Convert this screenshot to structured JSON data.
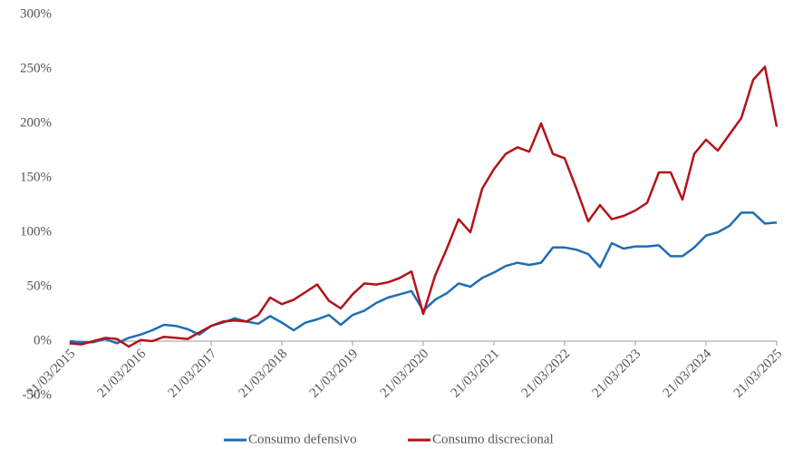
{
  "chart_data": {
    "type": "line",
    "categories": [
      "21/03/2015",
      null,
      null,
      null,
      null,
      null,
      "21/03/2016",
      null,
      null,
      null,
      null,
      null,
      "21/03/2017",
      null,
      null,
      null,
      null,
      null,
      "21/03/2018",
      null,
      null,
      null,
      null,
      null,
      "21/03/2019",
      null,
      null,
      null,
      null,
      null,
      "21/03/2020",
      null,
      null,
      null,
      null,
      null,
      "21/03/2021",
      null,
      null,
      null,
      null,
      null,
      "21/03/2022",
      null,
      null,
      null,
      null,
      null,
      "21/03/2023",
      null,
      null,
      null,
      null,
      null,
      "21/03/2024",
      null,
      null,
      null,
      null,
      null,
      "21/03/2025"
    ],
    "series": [
      {
        "name": "Consumo defensivo",
        "color": "#1f6db5",
        "values": [
          0,
          -1,
          -1,
          2,
          -2,
          3,
          6,
          10,
          15,
          14,
          11,
          6,
          14,
          17,
          21,
          18,
          16,
          23,
          17,
          10,
          17,
          20,
          24,
          15,
          24,
          28,
          35,
          40,
          43,
          46,
          28,
          38,
          44,
          53,
          50,
          58,
          63,
          69,
          72,
          70,
          72,
          86,
          86,
          84,
          80,
          68,
          90,
          85,
          87,
          87,
          88,
          78,
          78,
          86,
          97,
          100,
          106,
          118,
          118,
          108,
          109
        ]
      },
      {
        "name": "Consumo discrecional",
        "color": "#b3121a",
        "values": [
          -2,
          -3,
          0,
          3,
          2,
          -5,
          1,
          0,
          4,
          3,
          2,
          8,
          14,
          18,
          19,
          18,
          24,
          40,
          34,
          38,
          45,
          52,
          37,
          30,
          43,
          53,
          52,
          54,
          58,
          64,
          25,
          60,
          85,
          112,
          100,
          140,
          158,
          172,
          178,
          174,
          200,
          172,
          168,
          140,
          110,
          125,
          112,
          115,
          120,
          127,
          155,
          155,
          130,
          172,
          185,
          175,
          190,
          205,
          240,
          252,
          197
        ]
      }
    ],
    "ylim": [
      -50,
      300
    ],
    "yticks": [
      {
        "value": -50,
        "label": "-50%"
      },
      {
        "value": 0,
        "label": "0%"
      },
      {
        "value": 50,
        "label": "50%"
      },
      {
        "value": 100,
        "label": "100%"
      },
      {
        "value": 150,
        "label": "150%"
      },
      {
        "value": 200,
        "label": "200%"
      },
      {
        "value": 250,
        "label": "250%"
      },
      {
        "value": 300,
        "label": "300%"
      }
    ],
    "legend": "bottom"
  }
}
